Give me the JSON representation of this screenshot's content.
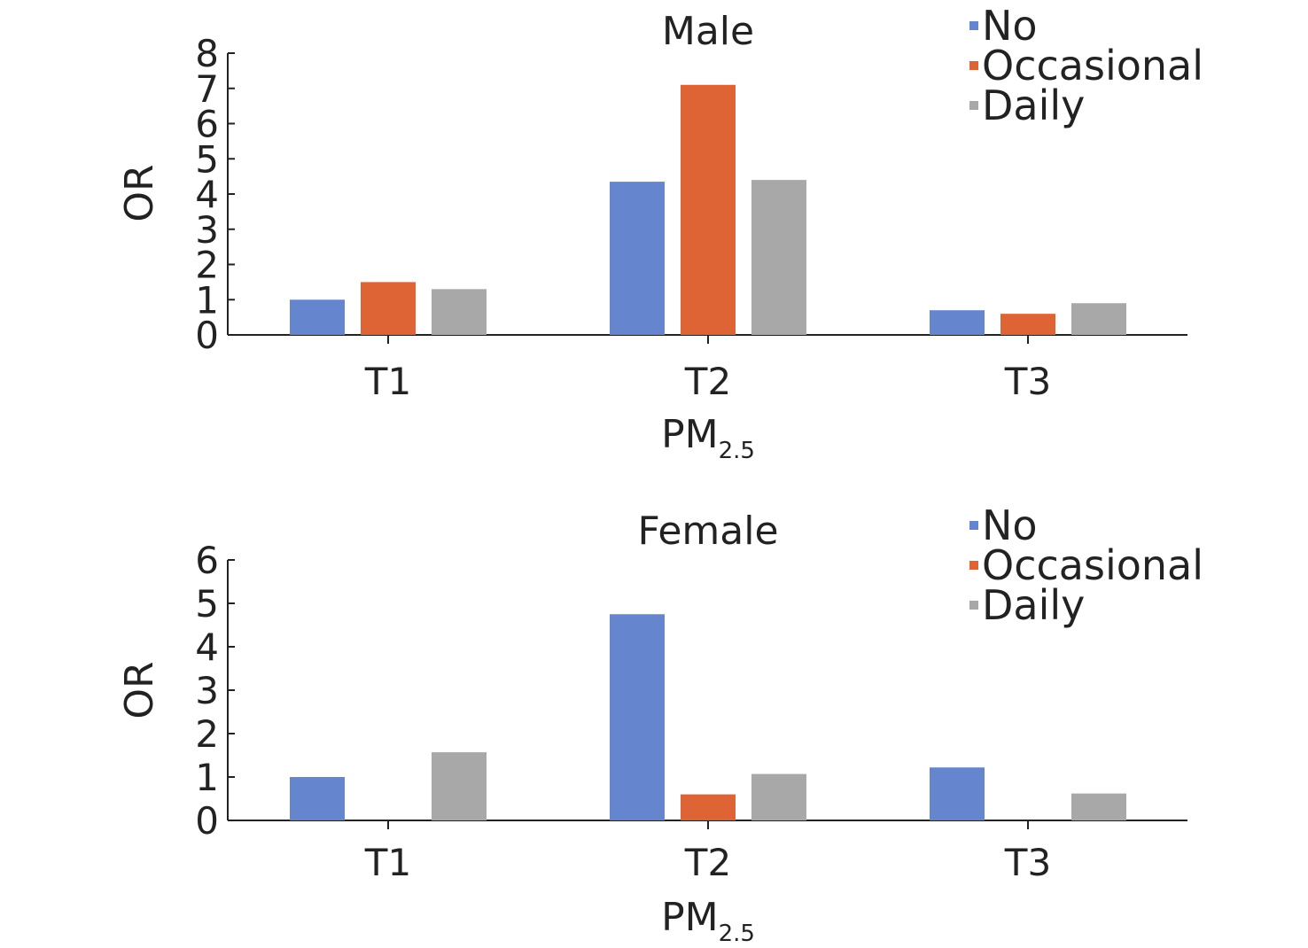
{
  "chart_data": [
    {
      "type": "bar",
      "title": "Male",
      "categories": [
        "T1",
        "T2",
        "T3"
      ],
      "series": [
        {
          "name": "No",
          "values": [
            1.0,
            4.35,
            0.7
          ]
        },
        {
          "name": "Occasional",
          "values": [
            1.5,
            7.1,
            0.6
          ]
        },
        {
          "name": "Daily",
          "values": [
            1.3,
            4.4,
            0.9
          ]
        }
      ],
      "xlabel": "PM",
      "xlabel_sub": "2.5",
      "ylabel": "OR",
      "ylim": [
        0,
        8
      ],
      "yticks": [
        "0",
        "1",
        "2",
        "3",
        "4",
        "5",
        "6",
        "7",
        "8"
      ],
      "legend": "top-right",
      "grid": false
    },
    {
      "type": "bar",
      "title": "Female",
      "categories": [
        "T1",
        "T2",
        "T3"
      ],
      "series": [
        {
          "name": "No",
          "values": [
            1.0,
            4.75,
            1.22
          ]
        },
        {
          "name": "Occasional",
          "values": [
            0,
            0.6,
            0
          ]
        },
        {
          "name": "Daily",
          "values": [
            1.57,
            1.07,
            0.62
          ]
        }
      ],
      "xlabel": "PM",
      "xlabel_sub": "2.5",
      "ylabel": "OR",
      "ylim": [
        0,
        6
      ],
      "yticks": [
        "0",
        "1",
        "2",
        "3",
        "4",
        "5",
        "6"
      ],
      "legend": "top-right",
      "grid": false
    }
  ],
  "colors": {
    "No": "#6585cf",
    "Occasional": "#df6435",
    "Daily": "#a8a8a8",
    "axis": "#222222"
  }
}
